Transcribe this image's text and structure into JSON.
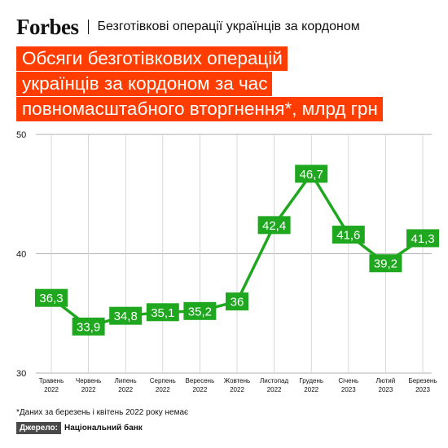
{
  "header": {
    "brand": "Forbes",
    "title": "Безготівкові операції українців за кордоном"
  },
  "chart_title": {
    "line1": "Обсяги безготівкових операцій",
    "line2": "українців за кордоном за час",
    "line3": "повномасштабного вторгнення*,",
    "unit": "млрд грн"
  },
  "colors": {
    "accent": "#ff3d00",
    "line": "#1fa81f",
    "grid": "#cfcfcf"
  },
  "chart_data": {
    "type": "line",
    "categories": [
      [
        "Травень",
        "2022"
      ],
      [
        "Червень",
        "2022"
      ],
      [
        "Липень",
        "2022"
      ],
      [
        "Серпень",
        "2022"
      ],
      [
        "Вересень",
        "2022"
      ],
      [
        "Жовтень",
        "2022"
      ],
      [
        "Листопад",
        "2022"
      ],
      [
        "Грудень",
        "2022"
      ],
      [
        "Січень",
        "2023"
      ],
      [
        "Лютий",
        "2023"
      ],
      [
        "Березень",
        "2023"
      ]
    ],
    "values": [
      36.3,
      33.9,
      34.8,
      35.1,
      35.2,
      36,
      42.4,
      46.7,
      41.6,
      39.2,
      41.3
    ],
    "data_labels": [
      "36,3",
      "33,9",
      "34,8",
      "35,1",
      "35,2",
      "36",
      "42,4",
      "46,7",
      "41,6",
      "39,2",
      "41,3"
    ],
    "yticks": [
      30,
      40,
      50
    ],
    "ylim": [
      30,
      50
    ],
    "grid": "vertical"
  },
  "footer": {
    "note": "*Даних за березень і квітень 2022 року немає",
    "source_label": "Джерело:",
    "source_value": "Національний банк"
  }
}
